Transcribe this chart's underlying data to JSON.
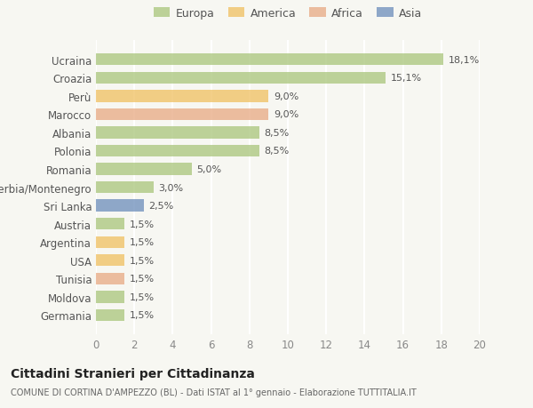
{
  "categories": [
    "Germania",
    "Moldova",
    "Tunisia",
    "USA",
    "Argentina",
    "Austria",
    "Sri Lanka",
    "Serbia/Montenegro",
    "Romania",
    "Polonia",
    "Albania",
    "Marocco",
    "Perù",
    "Croazia",
    "Ucraina"
  ],
  "values": [
    1.5,
    1.5,
    1.5,
    1.5,
    1.5,
    1.5,
    2.5,
    3.0,
    5.0,
    8.5,
    8.5,
    9.0,
    9.0,
    15.1,
    18.1
  ],
  "labels": [
    "1,5%",
    "1,5%",
    "1,5%",
    "1,5%",
    "1,5%",
    "1,5%",
    "2,5%",
    "3,0%",
    "5,0%",
    "8,5%",
    "8,5%",
    "9,0%",
    "9,0%",
    "15,1%",
    "18,1%"
  ],
  "colors": [
    "#a8c57a",
    "#a8c57a",
    "#e8a882",
    "#f0c060",
    "#f0c060",
    "#a8c57a",
    "#6b8cba",
    "#a8c57a",
    "#a8c57a",
    "#a8c57a",
    "#a8c57a",
    "#e8a882",
    "#f0c060",
    "#a8c57a",
    "#a8c57a"
  ],
  "legend": [
    {
      "label": "Europa",
      "color": "#a8c57a"
    },
    {
      "label": "America",
      "color": "#f0c060"
    },
    {
      "label": "Africa",
      "color": "#e8a882"
    },
    {
      "label": "Asia",
      "color": "#6b8cba"
    }
  ],
  "xlim": [
    0,
    20
  ],
  "xticks": [
    0,
    2,
    4,
    6,
    8,
    10,
    12,
    14,
    16,
    18,
    20
  ],
  "title": "Cittadini Stranieri per Cittadinanza",
  "subtitle": "COMUNE DI CORTINA D'AMPEZZO (BL) - Dati ISTAT al 1° gennaio - Elaborazione TUTTITALIA.IT",
  "bg_color": "#f7f7f2",
  "bar_color_alpha": 0.75
}
